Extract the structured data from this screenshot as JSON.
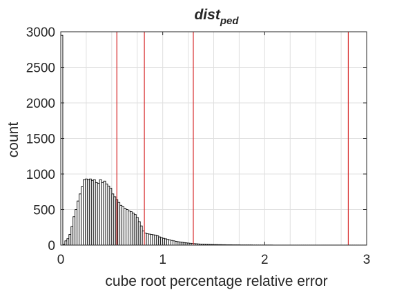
{
  "chart_data": {
    "type": "bar",
    "title": {
      "main": "dist",
      "subscript": "ped"
    },
    "xlabel": "cube root percentage relative error",
    "ylabel": "count",
    "xlim": [
      0,
      3
    ],
    "ylim": [
      0,
      3000
    ],
    "xticks": [
      0,
      1,
      2,
      3
    ],
    "xtick_labels": [
      "0",
      "1",
      "2",
      "3"
    ],
    "yticks": [
      0,
      500,
      1000,
      1500,
      2000,
      2500,
      3000
    ],
    "ytick_labels": [
      "0",
      "500",
      "1000",
      "1500",
      "2000",
      "2500",
      "3000"
    ],
    "grid": true,
    "bin_width": 0.02,
    "bin_start": 0,
    "counts": [
      2950,
      10,
      60,
      90,
      150,
      260,
      400,
      500,
      620,
      720,
      820,
      920,
      930,
      920,
      930,
      910,
      920,
      880,
      870,
      920,
      880,
      900,
      860,
      830,
      800,
      720,
      680,
      640,
      600,
      560,
      540,
      520,
      500,
      480,
      470,
      450,
      430,
      390,
      330,
      270,
      200,
      170,
      160,
      155,
      150,
      145,
      140,
      130,
      115,
      105,
      95,
      88,
      80,
      73,
      66,
      60,
      54,
      48,
      44,
      40,
      36,
      32,
      29,
      26,
      23,
      21,
      19,
      17,
      15,
      14,
      13,
      12,
      11,
      10,
      9,
      8,
      8,
      7,
      7,
      6,
      6,
      5,
      5,
      5,
      4,
      4,
      4,
      4,
      3,
      3,
      3,
      3,
      3,
      3,
      2,
      2,
      2,
      2,
      2,
      2,
      2,
      2,
      2,
      2,
      1,
      1,
      1,
      1,
      1,
      1,
      1,
      1,
      1,
      1,
      1,
      1,
      1,
      1,
      1,
      1,
      1,
      1,
      1,
      1,
      1,
      1,
      1,
      1,
      1,
      1,
      1,
      1,
      1,
      1,
      1,
      1,
      1,
      1,
      1,
      1,
      1,
      1,
      1,
      1,
      1,
      1,
      1,
      1,
      1,
      1
    ],
    "reference_lines": [
      0.55,
      0.82,
      1.3,
      2.82
    ],
    "colors": {
      "bar_fill": "#ffffff",
      "bar_edge": "#000000",
      "reference_line": "#d62728",
      "grid": "#dfdfdf",
      "axis": "#262626"
    }
  }
}
